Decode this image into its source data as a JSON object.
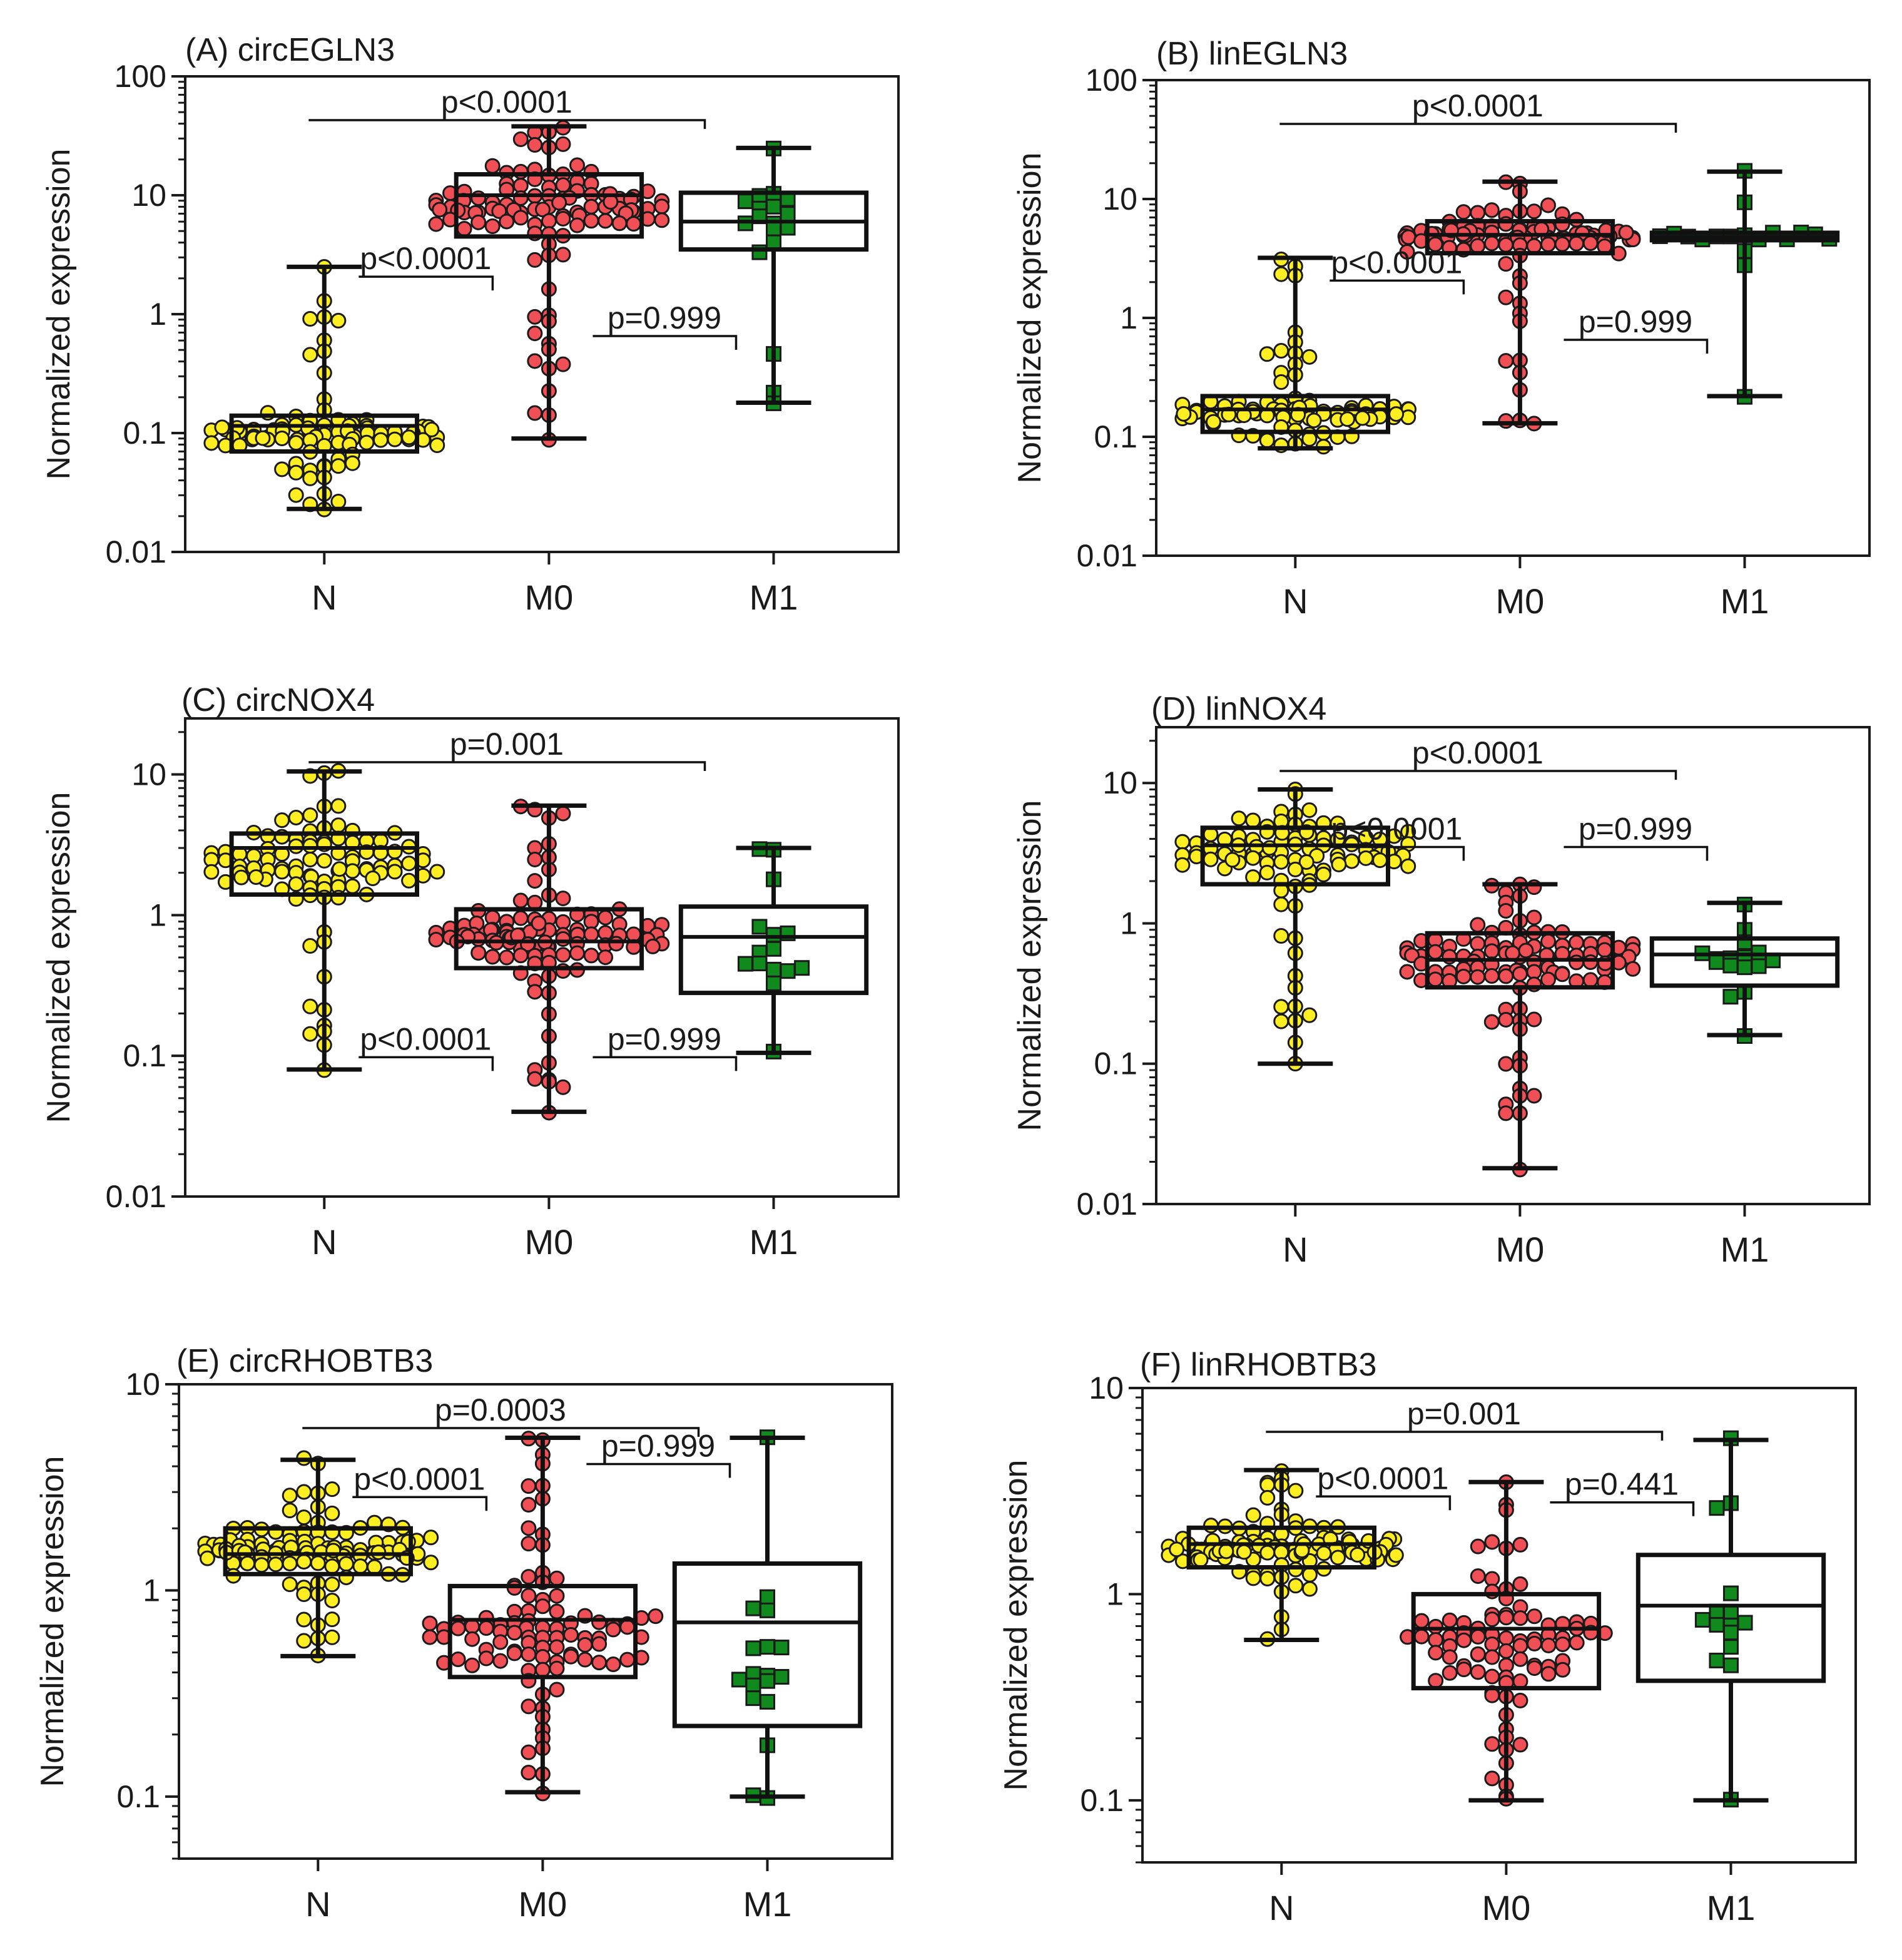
{
  "chart_data": [
    {
      "id": "A",
      "type": "box-dot",
      "title": "(A) circEGLN3",
      "ylabel": "Normalized expression",
      "yscale": "log",
      "ylim": [
        0.01,
        100
      ],
      "yticks": [
        0.01,
        0.1,
        1,
        10,
        100
      ],
      "ytick_labels": [
        "0.01",
        "0.1",
        "1",
        "10",
        "100"
      ],
      "categories": [
        "N",
        "M0",
        "M1"
      ],
      "groups": [
        {
          "name": "N",
          "color": "#ffef22",
          "marker": "circle",
          "n": 100,
          "min": 0.023,
          "q1": 0.07,
          "median": 0.115,
          "q3": 0.14,
          "max": 2.5,
          "highlights": [
            2.5,
            0.9,
            0.6,
            0.45,
            0.023
          ]
        },
        {
          "name": "M0",
          "color": "#ef4f55",
          "marker": "circle",
          "n": 110,
          "min": 0.09,
          "q1": 4.5,
          "median": 10,
          "q3": 15,
          "max": 38,
          "highlights": [
            38,
            0.09,
            0.15,
            0.5,
            0.7
          ]
        },
        {
          "name": "M1",
          "color": "#118a1d",
          "marker": "square",
          "n": 18,
          "min": 0.18,
          "q1": 3.5,
          "median": 6,
          "q3": 10.5,
          "max": 25,
          "highlights": [
            25,
            0.18
          ]
        }
      ],
      "comparisons": [
        {
          "from": "N",
          "to": "M0",
          "label": "p<0.0001"
        },
        {
          "from": "M0",
          "to": "M1",
          "label": "p=0.999"
        },
        {
          "from": "N",
          "to": "M1",
          "label": "p<0.0001"
        }
      ]
    },
    {
      "id": "B",
      "type": "box-dot",
      "title": "(B) linEGLN3",
      "ylabel": "Normalized expression",
      "yscale": "log",
      "ylim": [
        0.01,
        100
      ],
      "yticks": [
        0.01,
        0.1,
        1,
        10,
        100
      ],
      "ytick_labels": [
        "0.01",
        "0.1",
        "1",
        "10",
        "100"
      ],
      "categories": [
        "N",
        "M0",
        "M1"
      ],
      "groups": [
        {
          "name": "N",
          "color": "#ffef22",
          "marker": "circle",
          "n": 85,
          "min": 0.08,
          "q1": 0.11,
          "median": 0.17,
          "q3": 0.22,
          "max": 3.2,
          "highlights": [
            3.2,
            0.5,
            0.08
          ]
        },
        {
          "name": "M0",
          "color": "#ef4f55",
          "marker": "circle",
          "n": 100,
          "min": 0.13,
          "q1": 3.5,
          "median": 5,
          "q3": 6.5,
          "max": 14,
          "highlights": [
            14,
            0.13,
            0.25,
            0.45
          ]
        },
        {
          "name": "M1",
          "color": "#118a1d",
          "marker": "square",
          "n": 18,
          "min": 0.22,
          "q1": 4.5,
          "median": 4.8,
          "q3": 5.2,
          "max": 17,
          "highlights": [
            17,
            0.22,
            2.7
          ]
        }
      ],
      "comparisons": [
        {
          "from": "N",
          "to": "M0",
          "label": "p<0.0001"
        },
        {
          "from": "M0",
          "to": "M1",
          "label": "p=0.999"
        },
        {
          "from": "N",
          "to": "M1",
          "label": "p<0.0001"
        }
      ]
    },
    {
      "id": "C",
      "type": "box-dot",
      "title": "(C) circNOX4",
      "ylabel": "Normalized expression",
      "yscale": "log",
      "ylim": [
        0.01,
        25
      ],
      "yticks": [
        0.01,
        0.1,
        1,
        10
      ],
      "ytick_labels": [
        "0.01",
        "0.1",
        "1",
        "10"
      ],
      "categories": [
        "N",
        "M0",
        "M1"
      ],
      "groups": [
        {
          "name": "N",
          "color": "#ffef22",
          "marker": "circle",
          "n": 100,
          "min": 0.08,
          "q1": 1.4,
          "median": 3,
          "q3": 3.8,
          "max": 10.5,
          "highlights": [
            10.5,
            0.08,
            0.12,
            0.6
          ]
        },
        {
          "name": "M0",
          "color": "#ef4f55",
          "marker": "circle",
          "n": 110,
          "min": 0.04,
          "q1": 0.42,
          "median": 0.65,
          "q3": 1.1,
          "max": 6,
          "highlights": [
            6,
            0.04,
            0.09,
            3
          ]
        },
        {
          "name": "M1",
          "color": "#118a1d",
          "marker": "square",
          "n": 15,
          "min": 0.105,
          "q1": 0.28,
          "median": 0.7,
          "q3": 1.15,
          "max": 3,
          "highlights": [
            3,
            0.105
          ]
        }
      ],
      "comparisons": [
        {
          "from": "N",
          "to": "M0",
          "label": "p<0.0001"
        },
        {
          "from": "M0",
          "to": "M1",
          "label": "p=0.999"
        },
        {
          "from": "N",
          "to": "M1",
          "label": "p=0.001"
        }
      ]
    },
    {
      "id": "D",
      "type": "box-dot",
      "title": "(D) linNOX4",
      "ylabel": "Normalized expression",
      "yscale": "log",
      "ylim": [
        0.01,
        25
      ],
      "yticks": [
        0.01,
        0.1,
        1,
        10
      ],
      "ytick_labels": [
        "0.01",
        "0.1",
        "1",
        "10"
      ],
      "categories": [
        "N",
        "M0",
        "M1"
      ],
      "groups": [
        {
          "name": "N",
          "color": "#ffef22",
          "marker": "circle",
          "n": 100,
          "min": 0.1,
          "q1": 1.9,
          "median": 3.6,
          "q3": 4.8,
          "max": 9,
          "highlights": [
            9,
            0.1,
            0.22,
            0.25,
            0.8
          ]
        },
        {
          "name": "M0",
          "color": "#ef4f55",
          "marker": "circle",
          "n": 110,
          "min": 0.018,
          "q1": 0.35,
          "median": 0.55,
          "q3": 0.85,
          "max": 1.9,
          "highlights": [
            1.9,
            0.018,
            0.06,
            0.1
          ]
        },
        {
          "name": "M1",
          "color": "#118a1d",
          "marker": "square",
          "n": 16,
          "min": 0.16,
          "q1": 0.36,
          "median": 0.6,
          "q3": 0.78,
          "max": 1.4,
          "highlights": [
            1.4,
            0.16
          ]
        }
      ],
      "comparisons": [
        {
          "from": "N",
          "to": "M0",
          "label": "p<0.0001"
        },
        {
          "from": "M0",
          "to": "M1",
          "label": "p=0.999"
        },
        {
          "from": "N",
          "to": "M1",
          "label": "p<0.0001"
        }
      ]
    },
    {
      "id": "E",
      "type": "box-dot",
      "title": "(E) circRHOBTB3",
      "ylabel": "Normalized expression",
      "yscale": "log",
      "ylim": [
        0.05,
        10
      ],
      "yticks": [
        0.1,
        1,
        10
      ],
      "ytick_labels": [
        "0.1",
        "1",
        "10"
      ],
      "categories": [
        "N",
        "M0",
        "M1"
      ],
      "groups": [
        {
          "name": "N",
          "color": "#ffef22",
          "marker": "circle",
          "n": 120,
          "min": 0.48,
          "q1": 1.2,
          "median": 1.5,
          "q3": 2,
          "max": 4.3,
          "highlights": [
            4.3,
            0.48,
            0.6
          ]
        },
        {
          "name": "M0",
          "color": "#ef4f55",
          "marker": "circle",
          "n": 100,
          "min": 0.105,
          "q1": 0.38,
          "median": 0.72,
          "q3": 1.05,
          "max": 5.5,
          "highlights": [
            5.5,
            0.105,
            0.13
          ]
        },
        {
          "name": "M1",
          "color": "#118a1d",
          "marker": "square",
          "n": 18,
          "min": 0.1,
          "q1": 0.22,
          "median": 0.7,
          "q3": 1.35,
          "max": 5.5,
          "highlights": [
            5.5,
            0.1,
            0.1,
            0.18,
            0.3
          ]
        }
      ],
      "comparisons": [
        {
          "from": "N",
          "to": "M0",
          "label": "p<0.0001"
        },
        {
          "from": "M0",
          "to": "M1",
          "label": "p=0.999"
        },
        {
          "from": "N",
          "to": "M1",
          "label": "p=0.0003"
        }
      ]
    },
    {
      "id": "F",
      "type": "box-dot",
      "title": "(F) linRHOBTB3",
      "ylabel": "Normalized expression",
      "yscale": "log",
      "ylim": [
        0.05,
        10
      ],
      "yticks": [
        0.1,
        1,
        10
      ],
      "ytick_labels": [
        "0.1",
        "1",
        "10"
      ],
      "categories": [
        "N",
        "M0",
        "M1"
      ],
      "groups": [
        {
          "name": "N",
          "color": "#ffef22",
          "marker": "circle",
          "n": 110,
          "min": 0.6,
          "q1": 1.35,
          "median": 1.75,
          "q3": 2.1,
          "max": 4,
          "highlights": [
            4,
            0.6
          ]
        },
        {
          "name": "M0",
          "color": "#ef4f55",
          "marker": "circle",
          "n": 90,
          "min": 0.1,
          "q1": 0.35,
          "median": 0.68,
          "q3": 1.0,
          "max": 3.5,
          "highlights": [
            3.5,
            0.1,
            0.13,
            0.15
          ]
        },
        {
          "name": "M1",
          "color": "#118a1d",
          "marker": "square",
          "n": 15,
          "min": 0.1,
          "q1": 0.38,
          "median": 0.88,
          "q3": 1.55,
          "max": 5.6,
          "highlights": [
            5.6,
            0.1,
            2.8,
            2.6
          ]
        }
      ],
      "comparisons": [
        {
          "from": "N",
          "to": "M0",
          "label": "p<0.0001"
        },
        {
          "from": "M0",
          "to": "M1",
          "label": "p=0.441"
        },
        {
          "from": "N",
          "to": "M1",
          "label": "p=0.001"
        }
      ]
    }
  ]
}
